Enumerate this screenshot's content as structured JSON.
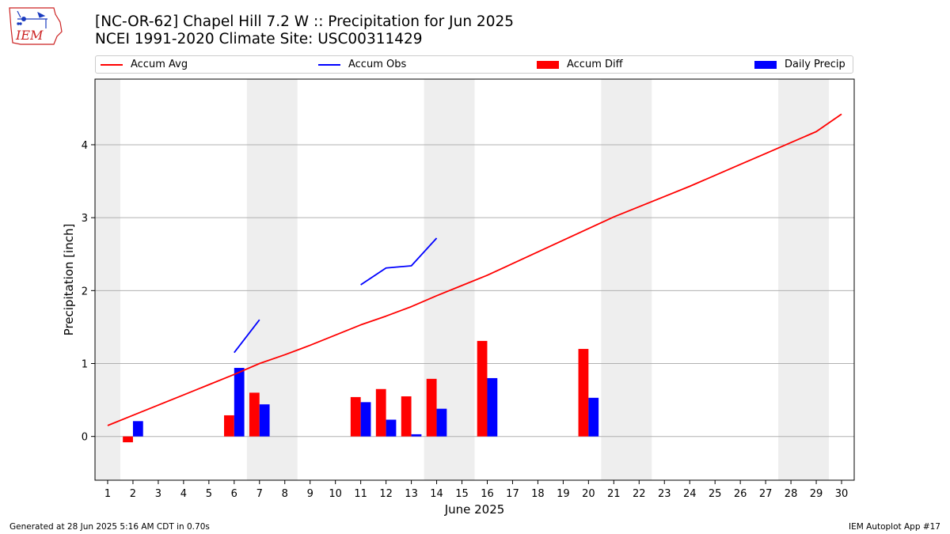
{
  "logo": {
    "text": "IEM"
  },
  "title_line1": "[NC-OR-62] Chapel Hill 7.2 W :: Precipitation for Jun 2025",
  "title_line2": "NCEI 1991-2020 Climate Site: USC00311429",
  "legend": [
    {
      "label": "Accum Avg",
      "kind": "line",
      "color": "#ff0000"
    },
    {
      "label": "Accum Obs",
      "kind": "line",
      "color": "#0000ff"
    },
    {
      "label": "Accum Diff",
      "kind": "box",
      "color": "#ff0000"
    },
    {
      "label": "Daily Precip",
      "kind": "box",
      "color": "#0000ff"
    }
  ],
  "footer_left": "Generated at 28 Jun 2025 5:16 AM CDT in 0.70s",
  "footer_right": "IEM Autoplot App #17",
  "chart_data": {
    "type": "bar",
    "xlabel": "June 2025",
    "ylabel": "Precipitation [inch]",
    "xlim": [
      0.5,
      30.5
    ],
    "ylim": [
      -0.6,
      4.9
    ],
    "yticks": [
      0,
      1,
      2,
      3,
      4
    ],
    "grid": "y",
    "legend_position": "top",
    "weekend_shading": [
      [
        0.5,
        1.5
      ],
      [
        6.5,
        8.5
      ],
      [
        13.5,
        15.5
      ],
      [
        20.5,
        22.5
      ],
      [
        27.5,
        29.5
      ]
    ],
    "shade_color": "#eeeeee",
    "days": [
      1,
      2,
      3,
      4,
      5,
      6,
      7,
      8,
      9,
      10,
      11,
      12,
      13,
      14,
      15,
      16,
      17,
      18,
      19,
      20,
      21,
      22,
      23,
      24,
      25,
      26,
      27,
      28,
      29,
      30
    ],
    "series": [
      {
        "name": "Accum Avg",
        "kind": "line",
        "color": "#ff0000",
        "x": [
          1,
          2,
          3,
          4,
          5,
          6,
          7,
          8,
          9,
          10,
          11,
          12,
          13,
          14,
          15,
          16,
          17,
          18,
          19,
          20,
          21,
          22,
          23,
          24,
          25,
          26,
          27,
          28,
          29,
          30
        ],
        "values": [
          0.15,
          0.29,
          0.43,
          0.57,
          0.71,
          0.85,
          1.0,
          1.12,
          1.25,
          1.39,
          1.53,
          1.65,
          1.78,
          1.93,
          2.07,
          2.21,
          2.37,
          2.53,
          2.69,
          2.85,
          3.01,
          3.15,
          3.29,
          3.43,
          3.58,
          3.73,
          3.88,
          4.03,
          4.18,
          4.42
        ]
      },
      {
        "name": "Accum Obs",
        "kind": "line",
        "color": "#0000ff",
        "segments": [
          {
            "x": [
              6,
              7
            ],
            "values": [
              1.15,
              1.6
            ]
          },
          {
            "x": [
              11,
              12,
              13,
              14
            ],
            "values": [
              2.08,
              2.31,
              2.34,
              2.72
            ]
          }
        ]
      },
      {
        "name": "Accum Diff",
        "kind": "bar",
        "color": "#ff0000",
        "offset": -0.2,
        "x": [
          2,
          6,
          7,
          11,
          12,
          13,
          14,
          16,
          20
        ],
        "values": [
          -0.08,
          0.29,
          0.6,
          0.54,
          0.65,
          0.55,
          0.79,
          1.31,
          1.2
        ]
      },
      {
        "name": "Daily Precip",
        "kind": "bar",
        "color": "#0000ff",
        "offset": 0.2,
        "x": [
          2,
          6,
          7,
          11,
          12,
          13,
          14,
          16,
          20
        ],
        "values": [
          0.21,
          0.94,
          0.44,
          0.47,
          0.23,
          0.03,
          0.38,
          0.8,
          0.53
        ]
      }
    ]
  }
}
